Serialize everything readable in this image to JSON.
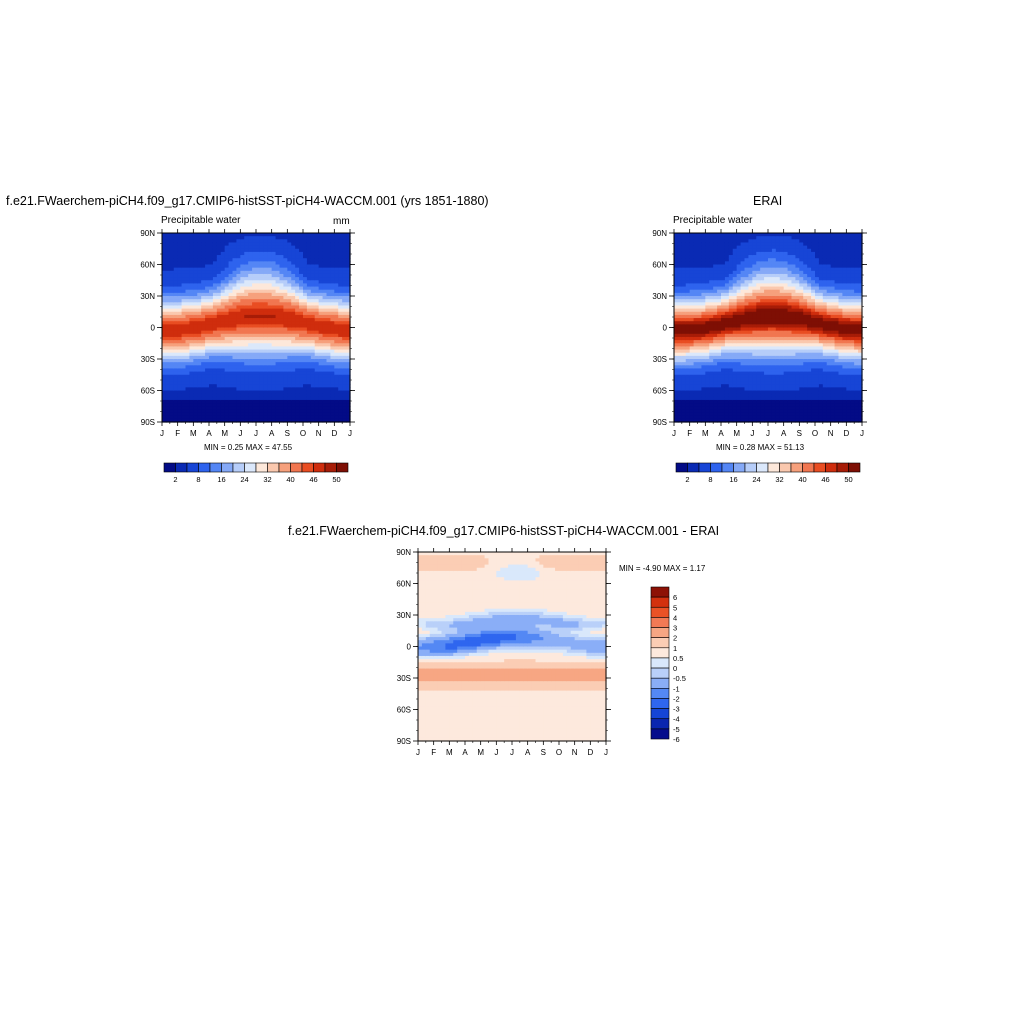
{
  "colors": {
    "abs_scale": [
      "#030b86",
      "#0a2ab4",
      "#1745d6",
      "#2e63ee",
      "#5486f5",
      "#85a9f7",
      "#b6cdf9",
      "#dbe8fb",
      "#fde8da",
      "#fac8ae",
      "#f6a07c",
      "#f17650",
      "#e94d22",
      "#cf2d0d",
      "#a71c07",
      "#7e0f04"
    ],
    "diff_scale": [
      "#050d8c",
      "#0a26b0",
      "#1545d6",
      "#2f66ef",
      "#5488f4",
      "#8aaef7",
      "#b9d0f9",
      "#d9e8fb",
      "#fde9dd",
      "#fbcdb4",
      "#f7a683",
      "#f27a55",
      "#ea5226",
      "#d3310e",
      "#8d1205"
    ]
  },
  "panels": {
    "model": {
      "title": "f.e21.FWaerchem-piCH4.f09_g17.CMIP6-histSST-piCH4-WACCM.001 (yrs 1851-1880)",
      "subtitle_left": "Precipitable water",
      "subtitle_right": "mm",
      "stats": "MIN =   0.25 MAX =  47.55"
    },
    "obs": {
      "title": "ERAI",
      "subtitle_left": "Precipitable water",
      "stats": "MIN =   0.28 MAX =  51.13"
    },
    "diff": {
      "title": "f.e21.FWaerchem-piCH4.f09_g17.CMIP6-histSST-piCH4-WACCM.001 - ERAI",
      "stats": "MIN =  -4.90 MAX =   1.17"
    }
  },
  "chart_data": [
    {
      "type": "heatmap",
      "title": "f.e21.FWaerchem-piCH4.f09_g17.CMIP6-histSST-piCH4-WACCM.001 (yrs 1851-1880)",
      "subtitle": "Precipitable water",
      "units": "mm",
      "x_ticks": [
        "J",
        "F",
        "M",
        "A",
        "M",
        "J",
        "J",
        "A",
        "S",
        "O",
        "N",
        "D",
        "J"
      ],
      "y_ticks": [
        "90N",
        "60N",
        "30N",
        "0",
        "30S",
        "60S",
        "90S"
      ],
      "ylim": [
        -90,
        90
      ],
      "min": 0.25,
      "max": 47.55,
      "colorbar_labels": [
        "2",
        "8",
        "16",
        "24",
        "32",
        "40",
        "46",
        "50"
      ],
      "levels": [
        2,
        4,
        8,
        12,
        16,
        20,
        24,
        28,
        32,
        36,
        40,
        44,
        46,
        48,
        50
      ]
    },
    {
      "type": "heatmap",
      "title": "ERAI",
      "subtitle": "Precipitable water",
      "x_ticks": [
        "J",
        "F",
        "M",
        "A",
        "M",
        "J",
        "J",
        "A",
        "S",
        "O",
        "N",
        "D",
        "J"
      ],
      "y_ticks": [
        "90N",
        "60N",
        "30N",
        "0",
        "30S",
        "60S",
        "90S"
      ],
      "ylim": [
        -90,
        90
      ],
      "min": 0.28,
      "max": 51.13,
      "colorbar_labels": [
        "2",
        "8",
        "16",
        "24",
        "32",
        "40",
        "46",
        "50"
      ],
      "levels": [
        2,
        4,
        8,
        12,
        16,
        20,
        24,
        28,
        32,
        36,
        40,
        44,
        46,
        48,
        50
      ]
    },
    {
      "type": "heatmap",
      "title": "f.e21.FWaerchem-piCH4.f09_g17.CMIP6-histSST-piCH4-WACCM.001 - ERAI",
      "x_ticks": [
        "J",
        "F",
        "M",
        "A",
        "M",
        "J",
        "J",
        "A",
        "S",
        "O",
        "N",
        "D",
        "J"
      ],
      "y_ticks": [
        "90N",
        "60N",
        "30N",
        "0",
        "30S",
        "60S",
        "90S"
      ],
      "ylim": [
        -90,
        90
      ],
      "min": -4.9,
      "max": 1.17,
      "colorbar_labels": [
        "6",
        "5",
        "4",
        "3",
        "2",
        "1",
        "0.5",
        "0",
        "-0.5",
        "-1",
        "-2",
        "-3",
        "-4",
        "-5",
        "-6"
      ],
      "levels": [
        -6,
        -5,
        -4,
        -3,
        -2,
        -1,
        -0.5,
        0,
        0.5,
        1,
        2,
        3,
        4,
        5,
        6
      ]
    }
  ]
}
